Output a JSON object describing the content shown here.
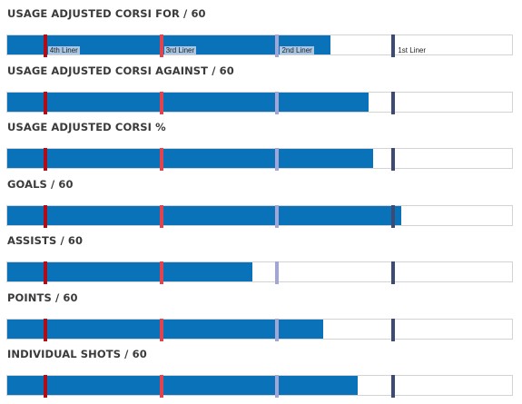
{
  "colors": {
    "bar": "#0a72b8",
    "track_border": "#d3d3d3",
    "title_text": "#3a3a3a",
    "label_bg": "#a9c7e5"
  },
  "markers": [
    {
      "label": "4th Liner",
      "value": 7.5,
      "color": "#b00d18"
    },
    {
      "label": "3rd Liner",
      "value": 30.5,
      "color": "#e0444f"
    },
    {
      "label": "2nd Liner",
      "value": 53.5,
      "color": "#a2a6d6"
    },
    {
      "label": "1st Liner",
      "value": 76.5,
      "color": "#3c4a74"
    }
  ],
  "chart_data": {
    "type": "bar",
    "orientation": "horizontal",
    "scale": "percent of track",
    "xlim": [
      0,
      100
    ],
    "categories": [
      "USAGE ADJUSTED CORSI FOR / 60",
      "USAGE ADJUSTED CORSI AGAINST / 60",
      "USAGE ADJUSTED CORSI %",
      "GOALS / 60",
      "ASSISTS / 60",
      "POINTS / 60",
      "INDIVIDUAL SHOTS / 60"
    ],
    "values": [
      64,
      71.5,
      72.5,
      78,
      48.5,
      62.5,
      69.5
    ],
    "marker_labels_shown_on": "USAGE ADJUSTED CORSI FOR / 60"
  }
}
